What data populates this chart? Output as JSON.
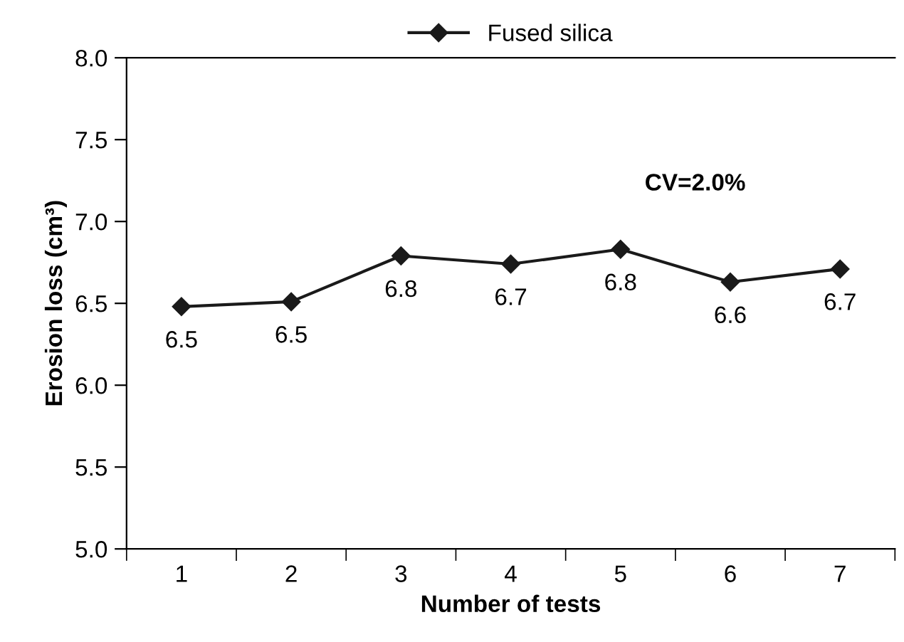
{
  "chart_data": {
    "type": "line",
    "xlabel": "Number of tests",
    "ylabel": "Erosion loss (cm³)",
    "categories": [
      "1",
      "2",
      "3",
      "4",
      "5",
      "6",
      "7"
    ],
    "series": [
      {
        "name": "Fused silica",
        "color": "#1a1a1a",
        "values": [
          6.48,
          6.51,
          6.79,
          6.74,
          6.83,
          6.63,
          6.71
        ],
        "value_labels": [
          "6.5",
          "6.5",
          "6.8",
          "6.7",
          "6.8",
          "6.6",
          "6.7"
        ]
      }
    ],
    "ylim": [
      5.0,
      8.0
    ],
    "yticks": [
      {
        "value": 5.0,
        "label": "5.0"
      },
      {
        "value": 5.5,
        "label": "5.5"
      },
      {
        "value": 6.0,
        "label": "6.0"
      },
      {
        "value": 6.5,
        "label": "6.5"
      },
      {
        "value": 7.0,
        "label": "7.0"
      },
      {
        "value": 7.5,
        "label": "7.5"
      },
      {
        "value": 8.0,
        "label": "8.0"
      }
    ],
    "annotations": [
      "CV=2.0%"
    ],
    "marker": "diamond",
    "line_style": "solid",
    "legend": "top",
    "grid": false
  }
}
